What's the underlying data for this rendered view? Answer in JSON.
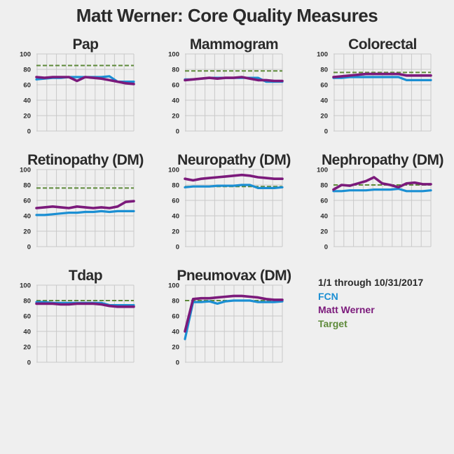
{
  "title": "Matt Werner: Core Quality Measures",
  "legend": {
    "period": "1/1 through 10/31/2017",
    "series": [
      {
        "name": "FCN",
        "color": "#1b8fd3"
      },
      {
        "name": "Matt Werner",
        "color": "#7b1a7b"
      },
      {
        "name": "Target",
        "color": "#5e8a3a"
      }
    ]
  },
  "colors": {
    "fcn": "#1b8fd3",
    "provider": "#7b1a7b",
    "target": "#5e8a3a",
    "grid": "#c9c9c9"
  },
  "chart_data": [
    {
      "type": "line",
      "title": "Pap",
      "ylim": [
        0,
        100
      ],
      "yticks": [
        0,
        20,
        40,
        60,
        80,
        100
      ],
      "target": 85,
      "series": [
        {
          "name": "FCN",
          "values": [
            67,
            68,
            69,
            69,
            70,
            70,
            70,
            70,
            70,
            71,
            64,
            64,
            64
          ]
        },
        {
          "name": "Matt Werner",
          "values": [
            70,
            69,
            70,
            70,
            70,
            65,
            70,
            69,
            68,
            66,
            64,
            62,
            61
          ]
        }
      ]
    },
    {
      "type": "line",
      "title": "Mammogram",
      "ylim": [
        0,
        100
      ],
      "yticks": [
        0,
        20,
        40,
        60,
        80,
        100
      ],
      "target": 78,
      "series": [
        {
          "name": "FCN",
          "values": [
            67,
            67,
            68,
            69,
            69,
            69,
            69,
            69,
            69,
            69,
            64,
            64,
            64
          ]
        },
        {
          "name": "Matt Werner",
          "values": [
            66,
            67,
            68,
            69,
            68,
            69,
            69,
            70,
            68,
            66,
            66,
            65,
            65
          ]
        }
      ]
    },
    {
      "type": "line",
      "title": "Colorectal",
      "ylim": [
        0,
        100
      ],
      "yticks": [
        0,
        20,
        40,
        60,
        80,
        100
      ],
      "target": 76,
      "series": [
        {
          "name": "FCN",
          "values": [
            69,
            69,
            70,
            70,
            70,
            70,
            70,
            70,
            70,
            66,
            66,
            66,
            66
          ]
        },
        {
          "name": "Matt Werner",
          "values": [
            70,
            71,
            72,
            73,
            74,
            74,
            74,
            74,
            74,
            72,
            72,
            72,
            72
          ]
        }
      ]
    },
    {
      "type": "line",
      "title": "Retinopathy (DM)",
      "ylim": [
        0,
        100
      ],
      "yticks": [
        0,
        20,
        40,
        60,
        80,
        100
      ],
      "target": 76,
      "series": [
        {
          "name": "FCN",
          "values": [
            41,
            41,
            42,
            43,
            44,
            44,
            45,
            45,
            46,
            45,
            46,
            46,
            46
          ]
        },
        {
          "name": "Matt Werner",
          "values": [
            50,
            51,
            52,
            51,
            50,
            52,
            51,
            50,
            51,
            50,
            52,
            58,
            59
          ]
        }
      ]
    },
    {
      "type": "line",
      "title": "Neuropathy (DM)",
      "ylim": [
        0,
        100
      ],
      "yticks": [
        0,
        20,
        40,
        60,
        80,
        100
      ],
      "target": 78,
      "series": [
        {
          "name": "FCN",
          "values": [
            77,
            78,
            78,
            78,
            79,
            79,
            79,
            80,
            80,
            76,
            76,
            76,
            77
          ]
        },
        {
          "name": "Matt Werner",
          "values": [
            88,
            86,
            88,
            89,
            90,
            91,
            92,
            93,
            92,
            90,
            89,
            88,
            88
          ]
        }
      ]
    },
    {
      "type": "line",
      "title": "Nephropathy (DM)",
      "ylim": [
        0,
        100
      ],
      "yticks": [
        0,
        20,
        40,
        60,
        80,
        100
      ],
      "target": 80,
      "series": [
        {
          "name": "FCN",
          "values": [
            72,
            72,
            73,
            73,
            73,
            74,
            74,
            74,
            75,
            72,
            72,
            72,
            73
          ]
        },
        {
          "name": "Matt Werner",
          "values": [
            74,
            80,
            79,
            82,
            85,
            90,
            82,
            80,
            77,
            82,
            83,
            81,
            81
          ]
        }
      ]
    },
    {
      "type": "line",
      "title": "Tdap",
      "ylim": [
        0,
        100
      ],
      "yticks": [
        0,
        20,
        40,
        60,
        80,
        100
      ],
      "target": 80,
      "series": [
        {
          "name": "FCN",
          "values": [
            78,
            78,
            77,
            77,
            77,
            77,
            77,
            77,
            77,
            74,
            74,
            74,
            74
          ]
        },
        {
          "name": "Matt Werner",
          "values": [
            76,
            76,
            76,
            75,
            75,
            76,
            76,
            76,
            75,
            73,
            72,
            72,
            72
          ]
        }
      ]
    },
    {
      "type": "line",
      "title": "Pneumovax (DM)",
      "ylim": [
        0,
        100
      ],
      "yticks": [
        0,
        20,
        40,
        60,
        80,
        100
      ],
      "target": 80,
      "series": [
        {
          "name": "FCN",
          "values": [
            30,
            78,
            78,
            79,
            76,
            79,
            80,
            80,
            80,
            78,
            78,
            78,
            79
          ]
        },
        {
          "name": "Matt Werner",
          "values": [
            40,
            82,
            83,
            83,
            84,
            85,
            86,
            86,
            85,
            84,
            82,
            81,
            81
          ]
        }
      ]
    }
  ]
}
